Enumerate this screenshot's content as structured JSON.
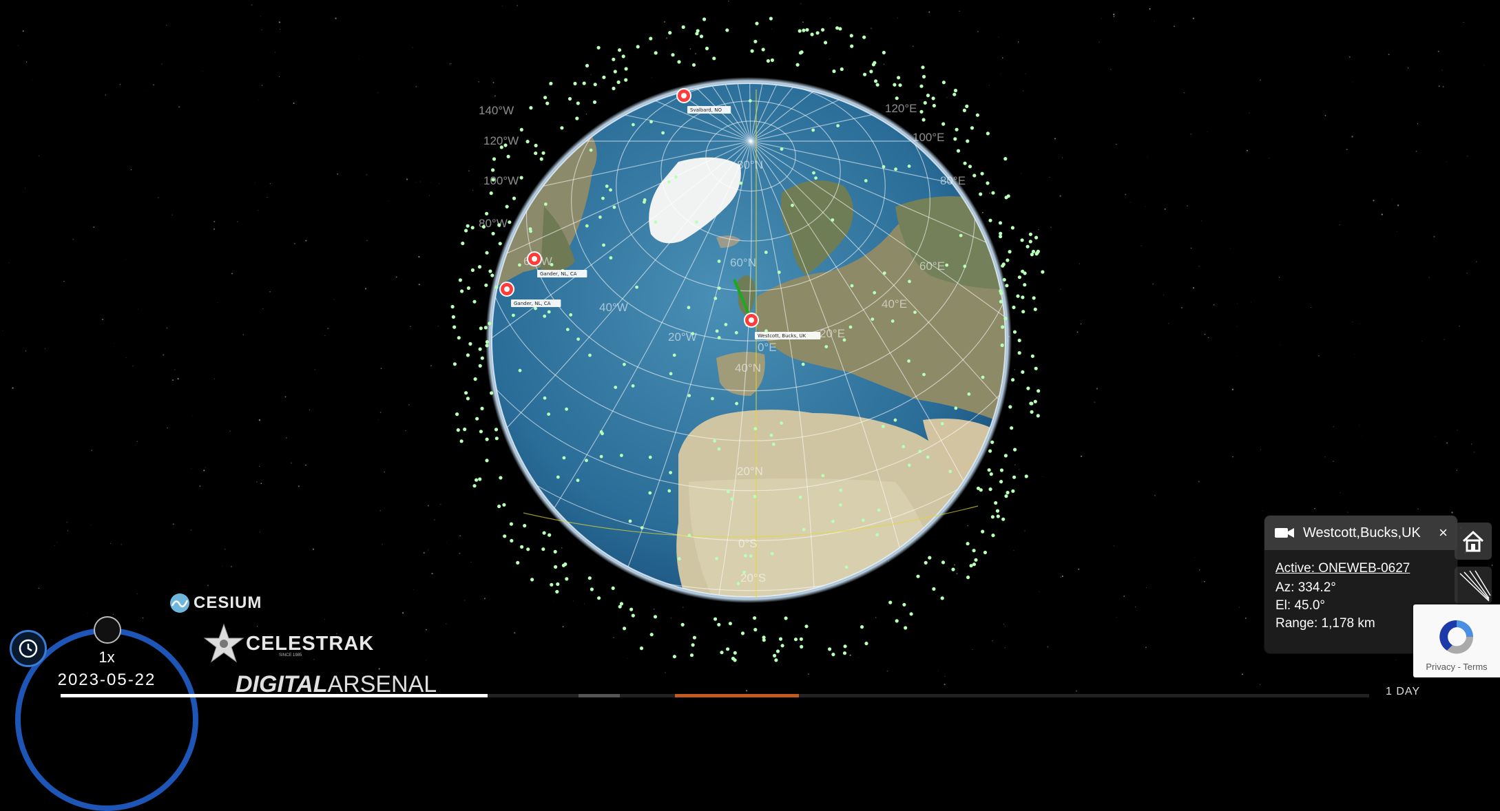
{
  "globe": {
    "grid_labels": [
      {
        "text": "140°W"
      },
      {
        "text": "120°W"
      },
      {
        "text": "100°W"
      },
      {
        "text": "80°W"
      },
      {
        "text": "60°W"
      },
      {
        "text": "40°W"
      },
      {
        "text": "20°W"
      },
      {
        "text": "120°E"
      },
      {
        "text": "100°E"
      },
      {
        "text": "80°E"
      },
      {
        "text": "60°E"
      },
      {
        "text": "40°E"
      },
      {
        "text": "20°E"
      },
      {
        "text": "80°N"
      },
      {
        "text": "60°N"
      },
      {
        "text": "40°N"
      },
      {
        "text": "20°N"
      },
      {
        "text": "0°S"
      },
      {
        "text": "20°S"
      },
      {
        "text": "0°E"
      }
    ],
    "ground_stations": [
      {
        "name": "Svalbard, NO"
      },
      {
        "name": "Gander, NL, CA"
      },
      {
        "name": "Gander, NL, CA"
      },
      {
        "name": "Westcott, Bucks, UK"
      }
    ],
    "colors": {
      "satellite": "#b8ffb8",
      "station": "#ff3b3b",
      "sensor_line": "#1ea81e"
    }
  },
  "info_panel": {
    "title": "Westcott,Bucks,UK",
    "close_label": "×",
    "active": "Active: ONEWEB-0627",
    "az": "Az: 334.2°",
    "el": "El: 45.0°",
    "range": "Range: 1,178 km"
  },
  "controls": {
    "speed": "1x",
    "date": "2023-05-22",
    "zoom_label": "1 DAY"
  },
  "logos": {
    "cesium": "CESIUM",
    "celestrak": "CELESTRAK",
    "celestrak_since": "SINCE 1985",
    "digital_arsenal_bold": "DIGITAL",
    "digital_arsenal_rest": "ARSENAL"
  },
  "recaptcha": {
    "privacy": "Privacy",
    "sep": " - ",
    "terms": "Terms"
  }
}
